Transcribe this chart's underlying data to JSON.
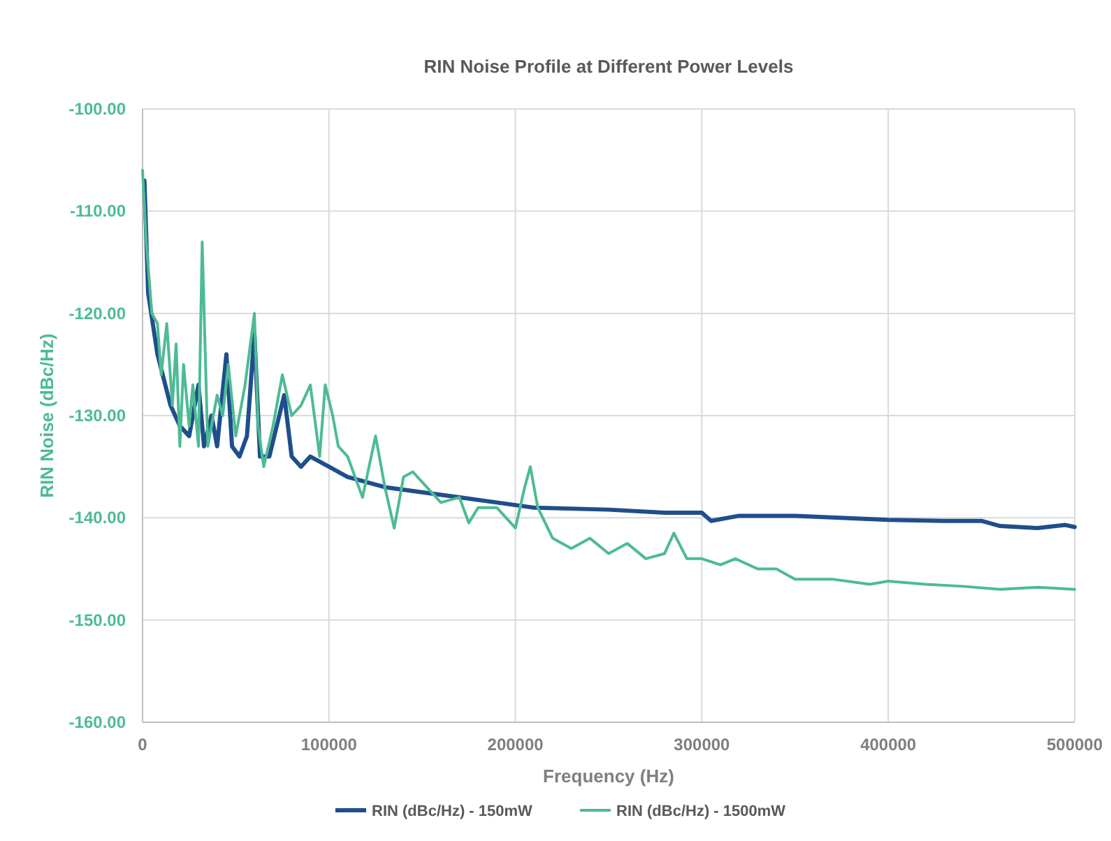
{
  "chart_data": {
    "type": "line",
    "title": "RIN Noise Profile at Different Power Levels",
    "xlabel": "Frequency (Hz)",
    "ylabel": "RIN Noise (dBc/Hz)",
    "xlim": [
      0,
      500000
    ],
    "xticks": [
      0,
      100000,
      200000,
      300000,
      400000,
      500000
    ],
    "ylim": [
      -160,
      -100
    ],
    "yticks": [
      {
        "value": -160,
        "label": "-160.00"
      },
      {
        "value": -150,
        "label": "-150.00"
      },
      {
        "value": -140,
        "label": "-140.00"
      },
      {
        "value": -130,
        "label": "-130.00"
      },
      {
        "value": -120,
        "label": "-120.00"
      },
      {
        "value": -110,
        "label": "-110.00"
      },
      {
        "value": -100,
        "label": "-100.00"
      }
    ],
    "grid": true,
    "legend": "bottom",
    "line_style": "solid",
    "series": [
      {
        "name": "RIN (dBc/Hz) - 150mW",
        "color": "#1f4e8c",
        "x": [
          1000,
          3000,
          8000,
          15000,
          20000,
          25000,
          30000,
          33000,
          37000,
          40000,
          45000,
          48000,
          52000,
          56000,
          60000,
          63000,
          68000,
          72000,
          76000,
          80000,
          85000,
          90000,
          100000,
          110000,
          120000,
          130000,
          150000,
          170000,
          190000,
          210000,
          250000,
          280000,
          300000,
          305000,
          320000,
          350000,
          400000,
          430000,
          450000,
          460000,
          480000,
          495000,
          500000
        ],
        "values": [
          -107,
          -118,
          -124,
          -129,
          -131,
          -132,
          -127,
          -133,
          -130,
          -133,
          -124,
          -133,
          -134,
          -132,
          -122,
          -134,
          -134,
          -131,
          -128,
          -134,
          -135,
          -134,
          -135,
          -136,
          -136.5,
          -137,
          -137.5,
          -138,
          -138.5,
          -139,
          -139.2,
          -139.5,
          -139.5,
          -140.3,
          -139.8,
          -139.8,
          -140.2,
          -140.3,
          -140.3,
          -140.8,
          -141,
          -140.7,
          -140.9
        ]
      },
      {
        "name": "RIN (dBc/Hz) - 1500mW",
        "color": "#4dbb94",
        "x": [
          0,
          2000,
          5000,
          8000,
          10000,
          13000,
          16000,
          18000,
          20000,
          22000,
          25000,
          27000,
          30000,
          32000,
          35000,
          40000,
          43000,
          46000,
          50000,
          55000,
          60000,
          62000,
          65000,
          70000,
          75000,
          80000,
          85000,
          90000,
          95000,
          98000,
          102000,
          105000,
          110000,
          118000,
          125000,
          130000,
          135000,
          140000,
          145000,
          150000,
          160000,
          170000,
          175000,
          180000,
          190000,
          200000,
          205000,
          208000,
          212000,
          220000,
          230000,
          240000,
          250000,
          260000,
          270000,
          280000,
          285000,
          292000,
          300000,
          310000,
          318000,
          330000,
          340000,
          350000,
          370000,
          390000,
          400000,
          420000,
          440000,
          460000,
          480000,
          500000
        ],
        "values": [
          -106,
          -113,
          -120,
          -121,
          -126,
          -121,
          -129,
          -123,
          -133,
          -125,
          -131,
          -127,
          -133,
          -113,
          -133,
          -128,
          -130,
          -125,
          -132,
          -127,
          -120,
          -131,
          -135,
          -131,
          -126,
          -130,
          -129,
          -127,
          -134,
          -127,
          -130,
          -133,
          -134,
          -138,
          -132,
          -137,
          -141,
          -136,
          -135.5,
          -136.5,
          -138.5,
          -138,
          -140.5,
          -139,
          -139,
          -141,
          -137,
          -135,
          -139,
          -142,
          -143,
          -142,
          -143.5,
          -142.5,
          -144,
          -143.5,
          -141.5,
          -144,
          -144,
          -144.6,
          -144,
          -145,
          -145,
          -146,
          -146,
          -146.5,
          -146.2,
          -146.5,
          -146.7,
          -147,
          -146.8,
          -147
        ]
      }
    ]
  }
}
